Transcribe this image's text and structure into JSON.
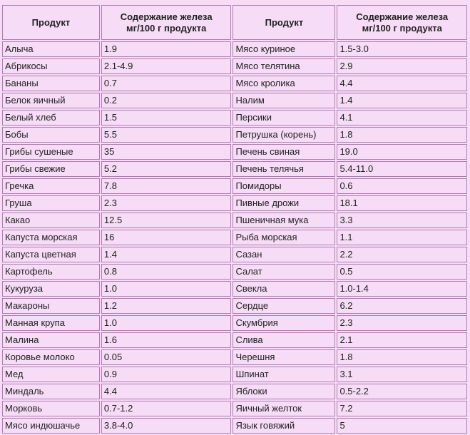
{
  "headers": {
    "product_left": "Продукт",
    "iron_left_line1": "Содержание железа",
    "iron_left_line2": "мг/100 г продукта",
    "product_right": "Продукт",
    "iron_right_line1": "Содержание железа",
    "iron_right_line2": "мг/100 г продукта"
  },
  "rows": [
    {
      "left_product": "Алыча",
      "left_iron": "1.9",
      "right_product": "Мясо куриное",
      "right_iron": "1.5-3.0"
    },
    {
      "left_product": "Абрикосы",
      "left_iron": "2.1-4.9",
      "right_product": "Мясо телятина",
      "right_iron": "2.9"
    },
    {
      "left_product": "Бананы",
      "left_iron": "0.7",
      "right_product": "Мясо кролика",
      "right_iron": "4.4"
    },
    {
      "left_product": "Белок яичный",
      "left_iron": "0.2",
      "right_product": "Налим",
      "right_iron": "1.4"
    },
    {
      "left_product": "Белый хлеб",
      "left_iron": "1.5",
      "right_product": "Персики",
      "right_iron": "4.1"
    },
    {
      "left_product": "Бобы",
      "left_iron": "5.5",
      "right_product": "Петрушка (корень)",
      "right_iron": "1.8"
    },
    {
      "left_product": "Грибы сушеные",
      "left_iron": "35",
      "right_product": "Печень свиная",
      "right_iron": "19.0"
    },
    {
      "left_product": "Грибы свежие",
      "left_iron": "5.2",
      "right_product": "Печень телячья",
      "right_iron": "5.4-11.0"
    },
    {
      "left_product": "Гречка",
      "left_iron": "7.8",
      "right_product": "Помидоры",
      "right_iron": "0.6"
    },
    {
      "left_product": "Груша",
      "left_iron": "2.3",
      "right_product": "Пивные дрожи",
      "right_iron": "18.1"
    },
    {
      "left_product": "Какао",
      "left_iron": "12.5",
      "right_product": "Пшеничная мука",
      "right_iron": "3.3"
    },
    {
      "left_product": "Капуста морская",
      "left_iron": "16",
      "right_product": "Рыба морская",
      "right_iron": "1.1"
    },
    {
      "left_product": "Капуста цветная",
      "left_iron": "1.4",
      "right_product": "Сазан",
      "right_iron": "2.2"
    },
    {
      "left_product": "Картофель",
      "left_iron": "0.8",
      "right_product": "Салат",
      "right_iron": "0.5"
    },
    {
      "left_product": "Кукуруза",
      "left_iron": "1.0",
      "right_product": "Свекла",
      "right_iron": "1.0-1.4"
    },
    {
      "left_product": "Макароны",
      "left_iron": "1.2",
      "right_product": "Сердце",
      "right_iron": "6.2"
    },
    {
      "left_product": "Манная крупа",
      "left_iron": "1.0",
      "right_product": "Скумбрия",
      "right_iron": "2.3"
    },
    {
      "left_product": "Малина",
      "left_iron": "1.6",
      "right_product": "Слива",
      "right_iron": "2.1"
    },
    {
      "left_product": "Коровье молоко",
      "left_iron": "0.05",
      "right_product": "Черешня",
      "right_iron": "1.8"
    },
    {
      "left_product": "Мед",
      "left_iron": "0.9",
      "right_product": "Шпинат",
      "right_iron": "3.1"
    },
    {
      "left_product": "Миндаль",
      "left_iron": "4.4",
      "right_product": "Яблоки",
      "right_iron": "0.5-2.2"
    },
    {
      "left_product": "Морковь",
      "left_iron": "0.7-1.2",
      "right_product": "Яичный желток",
      "right_iron": "7.2"
    },
    {
      "left_product": "Мясо индюшачье",
      "left_iron": "3.8-4.0",
      "right_product": "Язык говяжий",
      "right_iron": "5"
    }
  ]
}
